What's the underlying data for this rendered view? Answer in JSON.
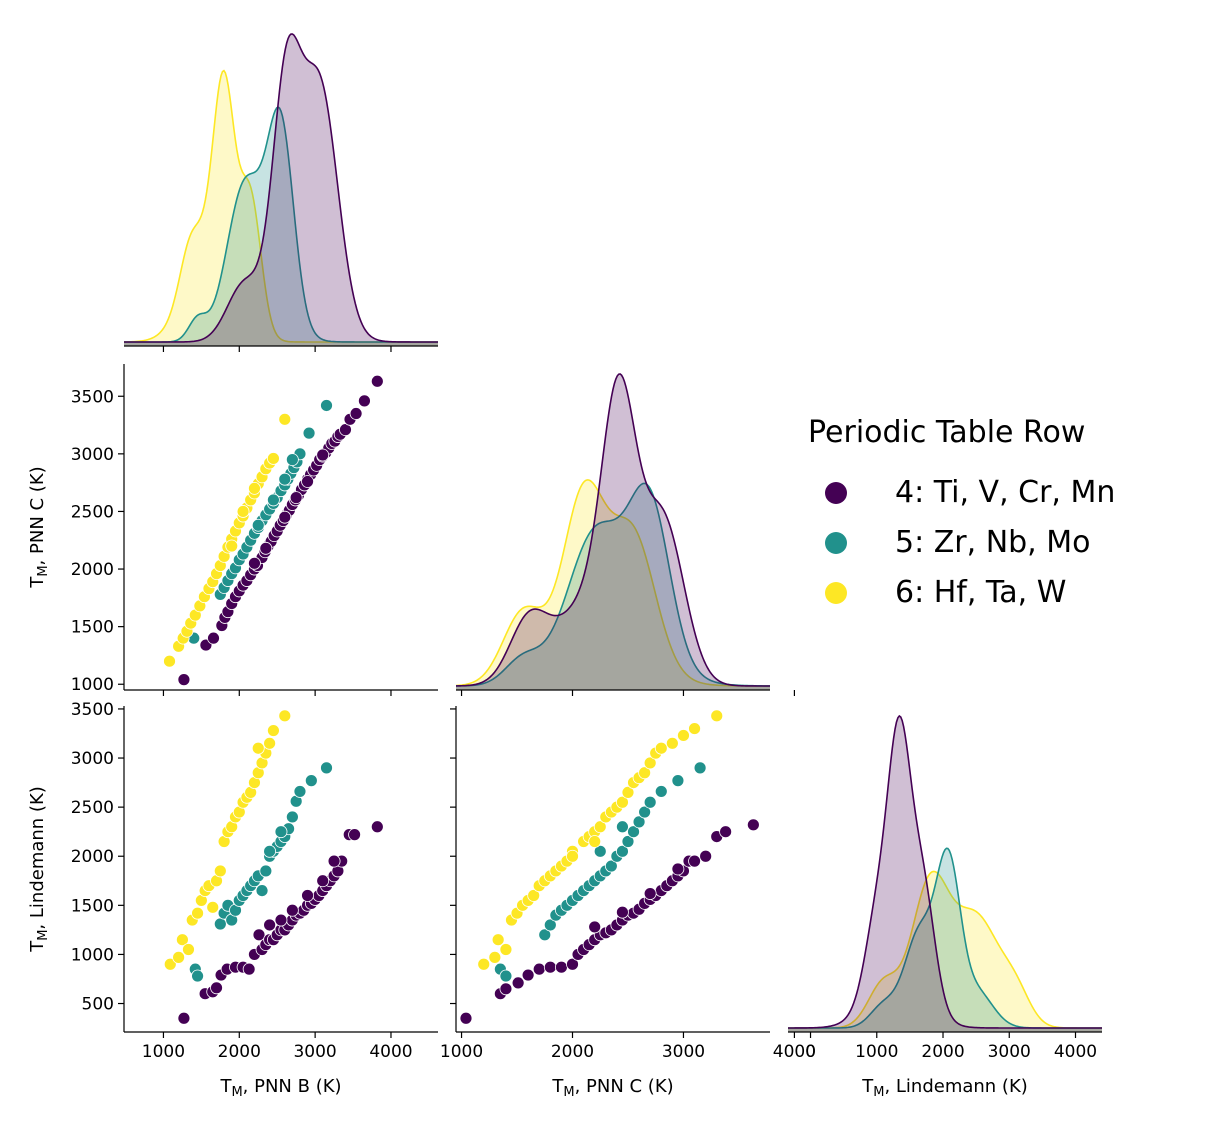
{
  "chart_data": {
    "type": "scatter",
    "title": "",
    "hue": {
      "title": "Periodic Table Row",
      "groups": [
        {
          "key": "row4",
          "label": "4: Ti, V, Cr, Mn",
          "color": "#440154"
        },
        {
          "key": "row5",
          "label": "5: Zr, Nb, Mo",
          "color": "#21918c"
        },
        {
          "key": "row6",
          "label": "6: Hf, Ta, W",
          "color": "#fde725"
        }
      ]
    },
    "variables": [
      {
        "key": "B",
        "label": "T",
        "sub": "M",
        "rest": ", PNN B (K)",
        "ticks": [
          1000,
          2000,
          3000,
          4000
        ],
        "lim": [
          480,
          4620
        ]
      },
      {
        "key": "C",
        "label": "T",
        "sub": "M",
        "rest": ", PNN C (K)",
        "ticks": [
          1000,
          1500,
          2000,
          2500,
          3000,
          3500
        ],
        "xticks": [
          1000,
          2000,
          3000,
          4000
        ],
        "lim": [
          950,
          3780
        ]
      },
      {
        "key": "L",
        "label": "T",
        "sub": "M",
        "rest": ", Lindemann (K)",
        "ticks": [
          500,
          1000,
          1500,
          2000,
          2500,
          3000,
          3500
        ],
        "xticks": [
          0,
          1000,
          2000,
          3000,
          4000
        ],
        "lim": [
          210,
          3530
        ],
        "xlim": [
          -340,
          4400
        ]
      }
    ],
    "panels": [
      {
        "row": 0,
        "col": 0,
        "kind": "kde",
        "x": "B"
      },
      {
        "row": 1,
        "col": 0,
        "kind": "scatter",
        "x": "B",
        "y": "C"
      },
      {
        "row": 1,
        "col": 1,
        "kind": "kde",
        "x": "C"
      },
      {
        "row": 2,
        "col": 0,
        "kind": "scatter",
        "x": "B",
        "y": "L"
      },
      {
        "row": 2,
        "col": 1,
        "kind": "scatter",
        "x": "C",
        "y": "L"
      },
      {
        "row": 2,
        "col": 2,
        "kind": "kde",
        "x": "L"
      }
    ],
    "kde_peaks": {
      "B": {
        "row4": 2730,
        "row5": 2580,
        "row6": 1850
      },
      "C": {
        "row4": 2430,
        "row5": 2720,
        "row6": 2150
      },
      "L": {
        "row4": 1330,
        "row5": 2050,
        "row6": 1800
      }
    },
    "scatter_BC": {
      "row4": [
        [
          1270,
          1040
        ],
        [
          1560,
          1340
        ],
        [
          1660,
          1400
        ],
        [
          1770,
          1510
        ],
        [
          1810,
          1580
        ],
        [
          1850,
          1630
        ],
        [
          1900,
          1700
        ],
        [
          1950,
          1760
        ],
        [
          2000,
          1810
        ],
        [
          2050,
          1860
        ],
        [
          2100,
          1900
        ],
        [
          2150,
          1950
        ],
        [
          2200,
          2000
        ],
        [
          2240,
          2030
        ],
        [
          2300,
          2100
        ],
        [
          2340,
          2150
        ],
        [
          2380,
          2200
        ],
        [
          2420,
          2240
        ],
        [
          2460,
          2290
        ],
        [
          2500,
          2330
        ],
        [
          2540,
          2380
        ],
        [
          2580,
          2420
        ],
        [
          2620,
          2470
        ],
        [
          2660,
          2510
        ],
        [
          2700,
          2560
        ],
        [
          2740,
          2600
        ],
        [
          2780,
          2640
        ],
        [
          2820,
          2690
        ],
        [
          2860,
          2730
        ],
        [
          2900,
          2780
        ],
        [
          2940,
          2820
        ],
        [
          2980,
          2860
        ],
        [
          3020,
          2900
        ],
        [
          3060,
          2950
        ],
        [
          3100,
          2980
        ],
        [
          3140,
          3010
        ],
        [
          3180,
          3050
        ],
        [
          3220,
          3090
        ],
        [
          3260,
          3110
        ],
        [
          3300,
          3150
        ],
        [
          3330,
          3170
        ],
        [
          3400,
          3210
        ],
        [
          3460,
          3300
        ],
        [
          3540,
          3350
        ],
        [
          3650,
          3460
        ],
        [
          3820,
          3630
        ],
        [
          2200,
          2050
        ],
        [
          2600,
          2450
        ],
        [
          2900,
          2760
        ],
        [
          3100,
          2990
        ],
        [
          2350,
          2180
        ],
        [
          2750,
          2620
        ]
      ],
      "row5": [
        [
          1400,
          1400
        ],
        [
          1750,
          1780
        ],
        [
          1800,
          1840
        ],
        [
          1850,
          1900
        ],
        [
          1900,
          1960
        ],
        [
          1950,
          2010
        ],
        [
          2000,
          2080
        ],
        [
          2050,
          2130
        ],
        [
          2100,
          2190
        ],
        [
          2150,
          2250
        ],
        [
          2200,
          2310
        ],
        [
          2250,
          2360
        ],
        [
          2300,
          2420
        ],
        [
          2350,
          2470
        ],
        [
          2400,
          2520
        ],
        [
          2450,
          2570
        ],
        [
          2500,
          2620
        ],
        [
          2550,
          2680
        ],
        [
          2600,
          2730
        ],
        [
          2640,
          2780
        ],
        [
          2680,
          2830
        ],
        [
          2720,
          2880
        ],
        [
          2760,
          2930
        ],
        [
          2800,
          3000
        ],
        [
          2920,
          3180
        ],
        [
          3150,
          3420
        ],
        [
          2450,
          2600
        ],
        [
          2600,
          2780
        ],
        [
          2250,
          2380
        ],
        [
          2700,
          2950
        ]
      ],
      "row6": [
        [
          1080,
          1200
        ],
        [
          1200,
          1330
        ],
        [
          1260,
          1400
        ],
        [
          1310,
          1460
        ],
        [
          1360,
          1530
        ],
        [
          1420,
          1600
        ],
        [
          1480,
          1680
        ],
        [
          1540,
          1760
        ],
        [
          1600,
          1830
        ],
        [
          1650,
          1890
        ],
        [
          1700,
          1960
        ],
        [
          1750,
          2030
        ],
        [
          1800,
          2110
        ],
        [
          1850,
          2190
        ],
        [
          1900,
          2260
        ],
        [
          1950,
          2330
        ],
        [
          2000,
          2400
        ],
        [
          2050,
          2460
        ],
        [
          2100,
          2530
        ],
        [
          2150,
          2600
        ],
        [
          2200,
          2660
        ],
        [
          2250,
          2740
        ],
        [
          2300,
          2800
        ],
        [
          2350,
          2870
        ],
        [
          2400,
          2920
        ],
        [
          2450,
          2960
        ],
        [
          2600,
          3300
        ],
        [
          1900,
          2200
        ],
        [
          2050,
          2500
        ],
        [
          2200,
          2700
        ]
      ]
    },
    "scatter_BL": {
      "row4": [
        [
          1270,
          350
        ],
        [
          1550,
          600
        ],
        [
          1650,
          620
        ],
        [
          1700,
          660
        ],
        [
          1760,
          790
        ],
        [
          1840,
          850
        ],
        [
          1950,
          870
        ],
        [
          2050,
          870
        ],
        [
          2130,
          850
        ],
        [
          2200,
          1000
        ],
        [
          2260,
          1200
        ],
        [
          2300,
          1050
        ],
        [
          2350,
          1100
        ],
        [
          2400,
          1150
        ],
        [
          2450,
          1150
        ],
        [
          2500,
          1200
        ],
        [
          2550,
          1250
        ],
        [
          2600,
          1250
        ],
        [
          2650,
          1300
        ],
        [
          2700,
          1350
        ],
        [
          2750,
          1400
        ],
        [
          2800,
          1420
        ],
        [
          2850,
          1450
        ],
        [
          2900,
          1500
        ],
        [
          2950,
          1520
        ],
        [
          3000,
          1560
        ],
        [
          3050,
          1600
        ],
        [
          3100,
          1650
        ],
        [
          3150,
          1700
        ],
        [
          3200,
          1750
        ],
        [
          3250,
          1800
        ],
        [
          3300,
          1850
        ],
        [
          3350,
          1950
        ],
        [
          3450,
          2220
        ],
        [
          3520,
          2220
        ],
        [
          3820,
          2300
        ],
        [
          2400,
          1300
        ],
        [
          2550,
          1350
        ],
        [
          2700,
          1450
        ],
        [
          2900,
          1600
        ],
        [
          3100,
          1750
        ],
        [
          3250,
          1950
        ]
      ],
      "row5": [
        [
          1420,
          850
        ],
        [
          1450,
          780
        ],
        [
          1750,
          1310
        ],
        [
          1800,
          1420
        ],
        [
          1850,
          1500
        ],
        [
          1900,
          1350
        ],
        [
          1950,
          1450
        ],
        [
          2000,
          1550
        ],
        [
          2050,
          1600
        ],
        [
          2100,
          1650
        ],
        [
          2150,
          1700
        ],
        [
          2200,
          1750
        ],
        [
          2250,
          1800
        ],
        [
          2300,
          1650
        ],
        [
          2350,
          1850
        ],
        [
          2400,
          2000
        ],
        [
          2450,
          2050
        ],
        [
          2500,
          2100
        ],
        [
          2550,
          2150
        ],
        [
          2600,
          2200
        ],
        [
          2650,
          2280
        ],
        [
          2700,
          2400
        ],
        [
          2750,
          2560
        ],
        [
          2800,
          2660
        ],
        [
          2950,
          2770
        ],
        [
          3150,
          2900
        ],
        [
          2400,
          2050
        ],
        [
          2550,
          2250
        ]
      ],
      "row6": [
        [
          1090,
          900
        ],
        [
          1200,
          970
        ],
        [
          1250,
          1150
        ],
        [
          1330,
          1050
        ],
        [
          1380,
          1350
        ],
        [
          1450,
          1420
        ],
        [
          1500,
          1550
        ],
        [
          1550,
          1650
        ],
        [
          1600,
          1700
        ],
        [
          1650,
          1480
        ],
        [
          1700,
          1750
        ],
        [
          1750,
          1850
        ],
        [
          1800,
          2150
        ],
        [
          1850,
          2250
        ],
        [
          1900,
          2300
        ],
        [
          1950,
          2400
        ],
        [
          2000,
          2450
        ],
        [
          2050,
          2550
        ],
        [
          2100,
          2600
        ],
        [
          2150,
          2650
        ],
        [
          2200,
          2750
        ],
        [
          2250,
          2850
        ],
        [
          2300,
          2950
        ],
        [
          2350,
          3050
        ],
        [
          2450,
          3280
        ],
        [
          2600,
          3430
        ],
        [
          2250,
          3100
        ],
        [
          2400,
          3150
        ]
      ]
    },
    "scatter_CL": {
      "row4": [
        [
          1040,
          350
        ],
        [
          1350,
          600
        ],
        [
          1400,
          650
        ],
        [
          1510,
          710
        ],
        [
          1600,
          790
        ],
        [
          1700,
          850
        ],
        [
          1800,
          870
        ],
        [
          1900,
          870
        ],
        [
          2000,
          900
        ],
        [
          2050,
          1000
        ],
        [
          2100,
          1050
        ],
        [
          2150,
          1100
        ],
        [
          2200,
          1150
        ],
        [
          2250,
          1200
        ],
        [
          2300,
          1220
        ],
        [
          2350,
          1250
        ],
        [
          2400,
          1300
        ],
        [
          2450,
          1350
        ],
        [
          2500,
          1400
        ],
        [
          2550,
          1420
        ],
        [
          2600,
          1460
        ],
        [
          2650,
          1520
        ],
        [
          2700,
          1560
        ],
        [
          2750,
          1600
        ],
        [
          2800,
          1650
        ],
        [
          2850,
          1700
        ],
        [
          2900,
          1750
        ],
        [
          2950,
          1800
        ],
        [
          3000,
          1850
        ],
        [
          3050,
          1950
        ],
        [
          3100,
          1950
        ],
        [
          3200,
          2000
        ],
        [
          3300,
          2200
        ],
        [
          3380,
          2250
        ],
        [
          3630,
          2320
        ],
        [
          2200,
          1280
        ],
        [
          2450,
          1430
        ],
        [
          2700,
          1620
        ],
        [
          2950,
          1870
        ]
      ],
      "row5": [
        [
          1350,
          850
        ],
        [
          1400,
          780
        ],
        [
          1750,
          1200
        ],
        [
          1800,
          1300
        ],
        [
          1850,
          1400
        ],
        [
          1900,
          1450
        ],
        [
          1950,
          1500
        ],
        [
          2000,
          1550
        ],
        [
          2050,
          1600
        ],
        [
          2100,
          1650
        ],
        [
          2150,
          1700
        ],
        [
          2200,
          1750
        ],
        [
          2250,
          1800
        ],
        [
          2300,
          1850
        ],
        [
          2350,
          1900
        ],
        [
          2400,
          2000
        ],
        [
          2450,
          2050
        ],
        [
          2500,
          2150
        ],
        [
          2550,
          2250
        ],
        [
          2600,
          2350
        ],
        [
          2650,
          2450
        ],
        [
          2700,
          2550
        ],
        [
          2800,
          2660
        ],
        [
          2950,
          2770
        ],
        [
          3150,
          2900
        ],
        [
          2250,
          2050
        ],
        [
          2450,
          2300
        ]
      ],
      "row6": [
        [
          1200,
          900
        ],
        [
          1300,
          970
        ],
        [
          1330,
          1150
        ],
        [
          1400,
          1050
        ],
        [
          1450,
          1350
        ],
        [
          1500,
          1420
        ],
        [
          1550,
          1500
        ],
        [
          1600,
          1550
        ],
        [
          1650,
          1600
        ],
        [
          1700,
          1700
        ],
        [
          1750,
          1750
        ],
        [
          1800,
          1800
        ],
        [
          1850,
          1850
        ],
        [
          1900,
          1900
        ],
        [
          1950,
          1950
        ],
        [
          2000,
          2050
        ],
        [
          2100,
          2150
        ],
        [
          2150,
          2200
        ],
        [
          2200,
          2250
        ],
        [
          2250,
          2300
        ],
        [
          2300,
          2400
        ],
        [
          2350,
          2450
        ],
        [
          2400,
          2500
        ],
        [
          2450,
          2550
        ],
        [
          2500,
          2650
        ],
        [
          2550,
          2750
        ],
        [
          2600,
          2800
        ],
        [
          2650,
          2850
        ],
        [
          2700,
          2950
        ],
        [
          2750,
          3050
        ],
        [
          2800,
          3100
        ],
        [
          2900,
          3150
        ],
        [
          3000,
          3230
        ],
        [
          3100,
          3300
        ],
        [
          3300,
          3430
        ],
        [
          2000,
          2000
        ],
        [
          2200,
          2150
        ]
      ]
    }
  }
}
